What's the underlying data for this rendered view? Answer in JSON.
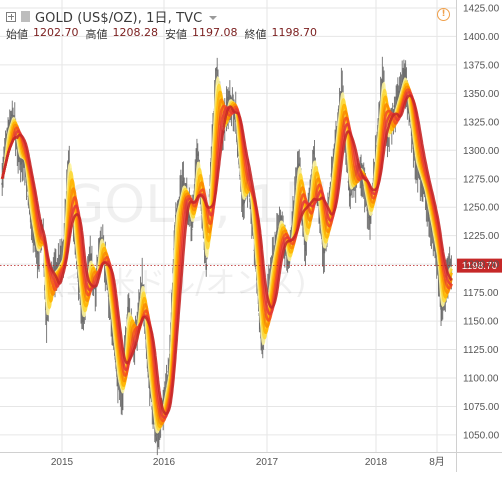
{
  "header": {
    "title": "GOLD (US$/OZ), 1日, TVC",
    "ohlc": [
      {
        "label": "始値",
        "value": "1202.70"
      },
      {
        "label": "高値",
        "value": "1208.28"
      },
      {
        "label": "安値",
        "value": "1197.08"
      },
      {
        "label": "終値",
        "value": "1198.70"
      }
    ]
  },
  "watermark": {
    "line1": "GOLD, 1日",
    "line2": "(金 米ドル/オンス)"
  },
  "colors": {
    "price_line": "#b71c1c",
    "price_label_bg": "#c62828",
    "ribbon": [
      "#fff59d",
      "#fdd835",
      "#ffb300",
      "#fb8c00",
      "#f4511e",
      "#e53935",
      "#c62828"
    ],
    "candles": "#6d6d6d",
    "grid": "#e6e6e6"
  },
  "chart_data": {
    "type": "line",
    "title": "GOLD (US$/OZ), 1日, TVC",
    "xlabel": "",
    "ylabel": "",
    "ylim": [
      1035,
      1432
    ],
    "x_tick_labels": [
      "2015",
      "2016",
      "2017",
      "2018",
      "8月"
    ],
    "y_tick_labels": [
      1050,
      1075,
      1100,
      1125,
      1150,
      1175,
      1200,
      1225,
      1250,
      1275,
      1300,
      1325,
      1350,
      1375,
      1400,
      1425
    ],
    "last_price": 1198.7,
    "grid": true,
    "series": [
      {
        "values": [
          {
            "x": "2014-06-01",
            "y": 1275
          },
          {
            "x": "2014-06-20",
            "y": 1315
          },
          {
            "x": "2014-07-10",
            "y": 1330
          },
          {
            "x": "2014-07-31",
            "y": 1295
          },
          {
            "x": "2014-08-20",
            "y": 1292
          },
          {
            "x": "2014-09-10",
            "y": 1245
          },
          {
            "x": "2014-10-05",
            "y": 1210
          },
          {
            "x": "2014-10-25",
            "y": 1230
          },
          {
            "x": "2014-11-06",
            "y": 1150
          },
          {
            "x": "2014-11-25",
            "y": 1190
          },
          {
            "x": "2014-12-15",
            "y": 1195
          },
          {
            "x": "2015-01-05",
            "y": 1205
          },
          {
            "x": "2015-01-25",
            "y": 1295
          },
          {
            "x": "2015-02-15",
            "y": 1225
          },
          {
            "x": "2015-03-17",
            "y": 1150
          },
          {
            "x": "2015-04-10",
            "y": 1205
          },
          {
            "x": "2015-05-01",
            "y": 1180
          },
          {
            "x": "2015-05-20",
            "y": 1225
          },
          {
            "x": "2015-06-15",
            "y": 1180
          },
          {
            "x": "2015-07-20",
            "y": 1100
          },
          {
            "x": "2015-08-05",
            "y": 1085
          },
          {
            "x": "2015-08-25",
            "y": 1160
          },
          {
            "x": "2015-09-20",
            "y": 1130
          },
          {
            "x": "2015-10-15",
            "y": 1185
          },
          {
            "x": "2015-11-05",
            "y": 1110
          },
          {
            "x": "2015-12-03",
            "y": 1050
          },
          {
            "x": "2015-12-25",
            "y": 1070
          },
          {
            "x": "2016-01-20",
            "y": 1105
          },
          {
            "x": "2016-02-11",
            "y": 1240
          },
          {
            "x": "2016-03-10",
            "y": 1270
          },
          {
            "x": "2016-04-10",
            "y": 1235
          },
          {
            "x": "2016-04-29",
            "y": 1295
          },
          {
            "x": "2016-05-30",
            "y": 1200
          },
          {
            "x": "2016-06-24",
            "y": 1320
          },
          {
            "x": "2016-07-06",
            "y": 1370
          },
          {
            "x": "2016-07-25",
            "y": 1315
          },
          {
            "x": "2016-08-20",
            "y": 1345
          },
          {
            "x": "2016-09-10",
            "y": 1335
          },
          {
            "x": "2016-10-06",
            "y": 1255
          },
          {
            "x": "2016-10-28",
            "y": 1275
          },
          {
            "x": "2016-11-15",
            "y": 1225
          },
          {
            "x": "2016-12-15",
            "y": 1125
          },
          {
            "x": "2017-01-15",
            "y": 1195
          },
          {
            "x": "2017-02-15",
            "y": 1240
          },
          {
            "x": "2017-03-15",
            "y": 1200
          },
          {
            "x": "2017-04-17",
            "y": 1290
          },
          {
            "x": "2017-05-09",
            "y": 1215
          },
          {
            "x": "2017-06-06",
            "y": 1295
          },
          {
            "x": "2017-07-10",
            "y": 1210
          },
          {
            "x": "2017-08-10",
            "y": 1285
          },
          {
            "x": "2017-09-08",
            "y": 1355
          },
          {
            "x": "2017-10-05",
            "y": 1265
          },
          {
            "x": "2017-11-10",
            "y": 1285
          },
          {
            "x": "2017-12-12",
            "y": 1240
          },
          {
            "x": "2018-01-25",
            "y": 1365
          },
          {
            "x": "2018-02-08",
            "y": 1310
          },
          {
            "x": "2018-03-20",
            "y": 1345
          },
          {
            "x": "2018-04-11",
            "y": 1365
          },
          {
            "x": "2018-05-20",
            "y": 1290
          },
          {
            "x": "2018-06-20",
            "y": 1265
          },
          {
            "x": "2018-07-20",
            "y": 1225
          },
          {
            "x": "2018-08-03",
            "y": 1205
          },
          {
            "x": "2018-08-16",
            "y": 1160
          },
          {
            "x": "2018-09-10",
            "y": 1195
          },
          {
            "x": "2018-09-21",
            "y": 1198.7
          }
        ]
      }
    ]
  }
}
